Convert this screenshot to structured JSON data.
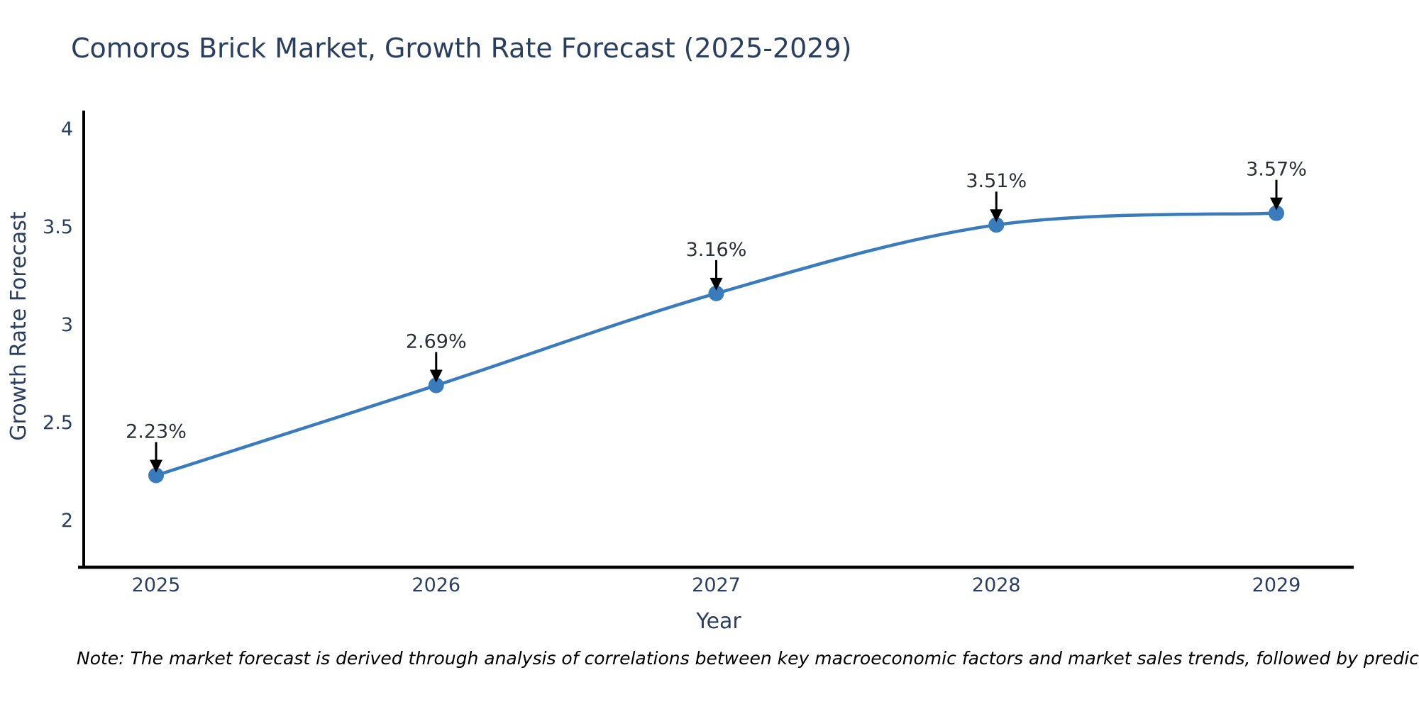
{
  "title": "Comoros Brick Market, Growth Rate Forecast (2025-2029)",
  "note": "Note: The market forecast is derived through analysis of correlations between key macroeconomic factors and market sales trends, followed by predictive modeling to project future sales",
  "chart_data": {
    "type": "line",
    "title": "Comoros Brick Market, Growth Rate Forecast (2025-2029)",
    "xlabel": "Year",
    "ylabel": "Growth Rate Forecast",
    "x": [
      2025,
      2026,
      2027,
      2028,
      2029
    ],
    "series": [
      {
        "name": "Growth Rate Forecast",
        "values": [
          2.23,
          2.69,
          3.16,
          3.51,
          3.57
        ]
      }
    ],
    "point_labels": [
      "2.23%",
      "2.69%",
      "3.16%",
      "3.51%",
      "3.57%"
    ],
    "yticks": [
      2,
      2.5,
      3,
      3.5,
      4
    ],
    "ylim": [
      1.76,
      4.09
    ],
    "grid": false,
    "legend": false,
    "line_shape": "spline",
    "annotations": "arrow-down-to-each-point"
  },
  "colors": {
    "line": "#3a7bbc",
    "marker": "#3a7bbc",
    "axis": "#000000",
    "tick_label": "#2a3f5f",
    "axis_title": "#2a3f5f",
    "title": "#2a3f5f",
    "annotation_text": "#2b2f36",
    "annotation_arrow": "#000000",
    "background": "#ffffff"
  }
}
